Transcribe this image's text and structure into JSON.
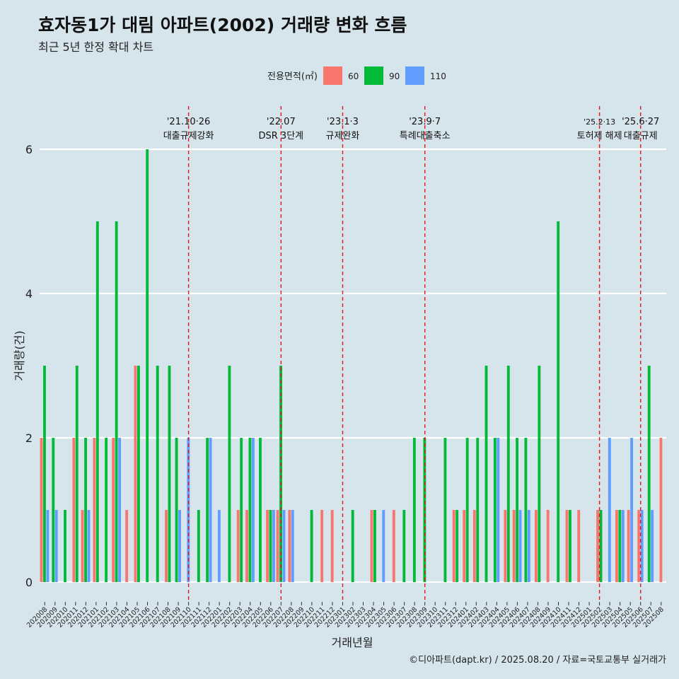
{
  "chart_data": {
    "type": "bar",
    "title": "효자동1가 대림 아파트(2002) 거래량 변화 흐름",
    "subtitle": "최근 5년 한정 확대 차트",
    "xlabel": "거래년월",
    "ylabel": "거래량(건)",
    "ylim": [
      0,
      6.5
    ],
    "yticks": [
      0,
      2,
      4,
      6
    ],
    "grid": true,
    "legend_title": "전용면적(㎡)",
    "legend_position": "top",
    "caption": "©디아파트(dapt.kr) / 2025.08.20 / 자료=국토교통부 실거래가",
    "categories": [
      "202008",
      "202009",
      "202010",
      "202011",
      "202012",
      "202101",
      "202102",
      "202103",
      "202104",
      "202105",
      "202106",
      "202107",
      "202108",
      "202109",
      "202110",
      "202111",
      "202112",
      "202201",
      "202202",
      "202203",
      "202204",
      "202205",
      "202206",
      "202207",
      "202208",
      "202209",
      "202210",
      "202211",
      "202212",
      "202301",
      "202302",
      "202303",
      "202304",
      "202305",
      "202306",
      "202307",
      "202308",
      "202309",
      "202310",
      "202311",
      "202312",
      "202401",
      "202402",
      "202403",
      "202404",
      "202405",
      "202406",
      "202407",
      "202408",
      "202409",
      "202410",
      "202411",
      "202412",
      "202501",
      "202502",
      "202503",
      "202504",
      "202505",
      "202506",
      "202507",
      "202508"
    ],
    "series": [
      {
        "name": "60",
        "color": "#f8766d",
        "values": [
          2,
          0,
          0,
          2,
          1,
          2,
          0,
          2,
          1,
          3,
          0,
          0,
          1,
          0,
          0,
          0,
          0,
          0,
          0,
          1,
          1,
          0,
          1,
          1,
          1,
          0,
          0,
          1,
          1,
          0,
          0,
          0,
          1,
          0,
          1,
          0,
          0,
          0,
          0,
          0,
          1,
          1,
          1,
          0,
          0,
          1,
          1,
          0,
          1,
          1,
          0,
          1,
          1,
          0,
          1,
          0,
          1,
          1,
          1,
          0,
          2
        ]
      },
      {
        "name": "90",
        "color": "#00ba38",
        "values": [
          3,
          2,
          1,
          3,
          2,
          5,
          2,
          5,
          0,
          3,
          6,
          3,
          3,
          2,
          0,
          1,
          2,
          0,
          3,
          2,
          2,
          2,
          1,
          3,
          0,
          0,
          1,
          0,
          0,
          0,
          1,
          0,
          1,
          0,
          0,
          1,
          2,
          2,
          0,
          2,
          1,
          2,
          2,
          3,
          2,
          3,
          2,
          2,
          3,
          0,
          5,
          1,
          0,
          0,
          1,
          0,
          1,
          0,
          0,
          3,
          0
        ]
      },
      {
        "name": "110",
        "color": "#619cff",
        "values": [
          1,
          1,
          0,
          0,
          1,
          0,
          0,
          2,
          0,
          0,
          0,
          0,
          0,
          1,
          2,
          0,
          2,
          1,
          0,
          0,
          2,
          0,
          1,
          1,
          1,
          0,
          0,
          0,
          0,
          0,
          0,
          0,
          0,
          1,
          0,
          0,
          0,
          0,
          0,
          0,
          0,
          0,
          0,
          0,
          2,
          0,
          1,
          1,
          0,
          0,
          0,
          0,
          0,
          0,
          0,
          2,
          1,
          2,
          1,
          1,
          0
        ]
      }
    ],
    "events": [
      {
        "date": "'21.10·26",
        "label": "대출규제강화",
        "category": "202110"
      },
      {
        "date": "'22.07",
        "label": "DSR 3단계",
        "category": "202207"
      },
      {
        "date": "'23.1·3",
        "label": "규제완화",
        "category": "202301"
      },
      {
        "date": "'23.9·7",
        "label": "특례대출축소",
        "category": "202309"
      },
      {
        "date": "'25.2·13",
        "label": "토허제 해제",
        "category": "202502"
      },
      {
        "date": "'25.6·27",
        "label": "대출규제",
        "category": "202506"
      }
    ]
  }
}
